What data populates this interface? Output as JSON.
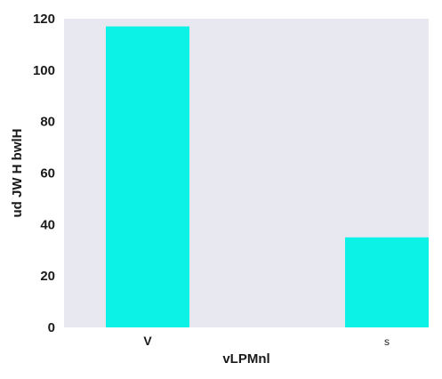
{
  "chart_data": {
    "type": "bar",
    "categories": [
      "V",
      "s"
    ],
    "values": [
      117,
      35
    ],
    "xlabel": "vLPMnl",
    "ylabel": "ud JW H bwlH",
    "ylim": [
      0,
      120
    ],
    "yticks": [
      0,
      20,
      40,
      60,
      80,
      100,
      120
    ],
    "grid": false,
    "legend": "none",
    "colors": {
      "bar": "#0cf2e6",
      "plot_background": "#e8e8f1"
    }
  }
}
